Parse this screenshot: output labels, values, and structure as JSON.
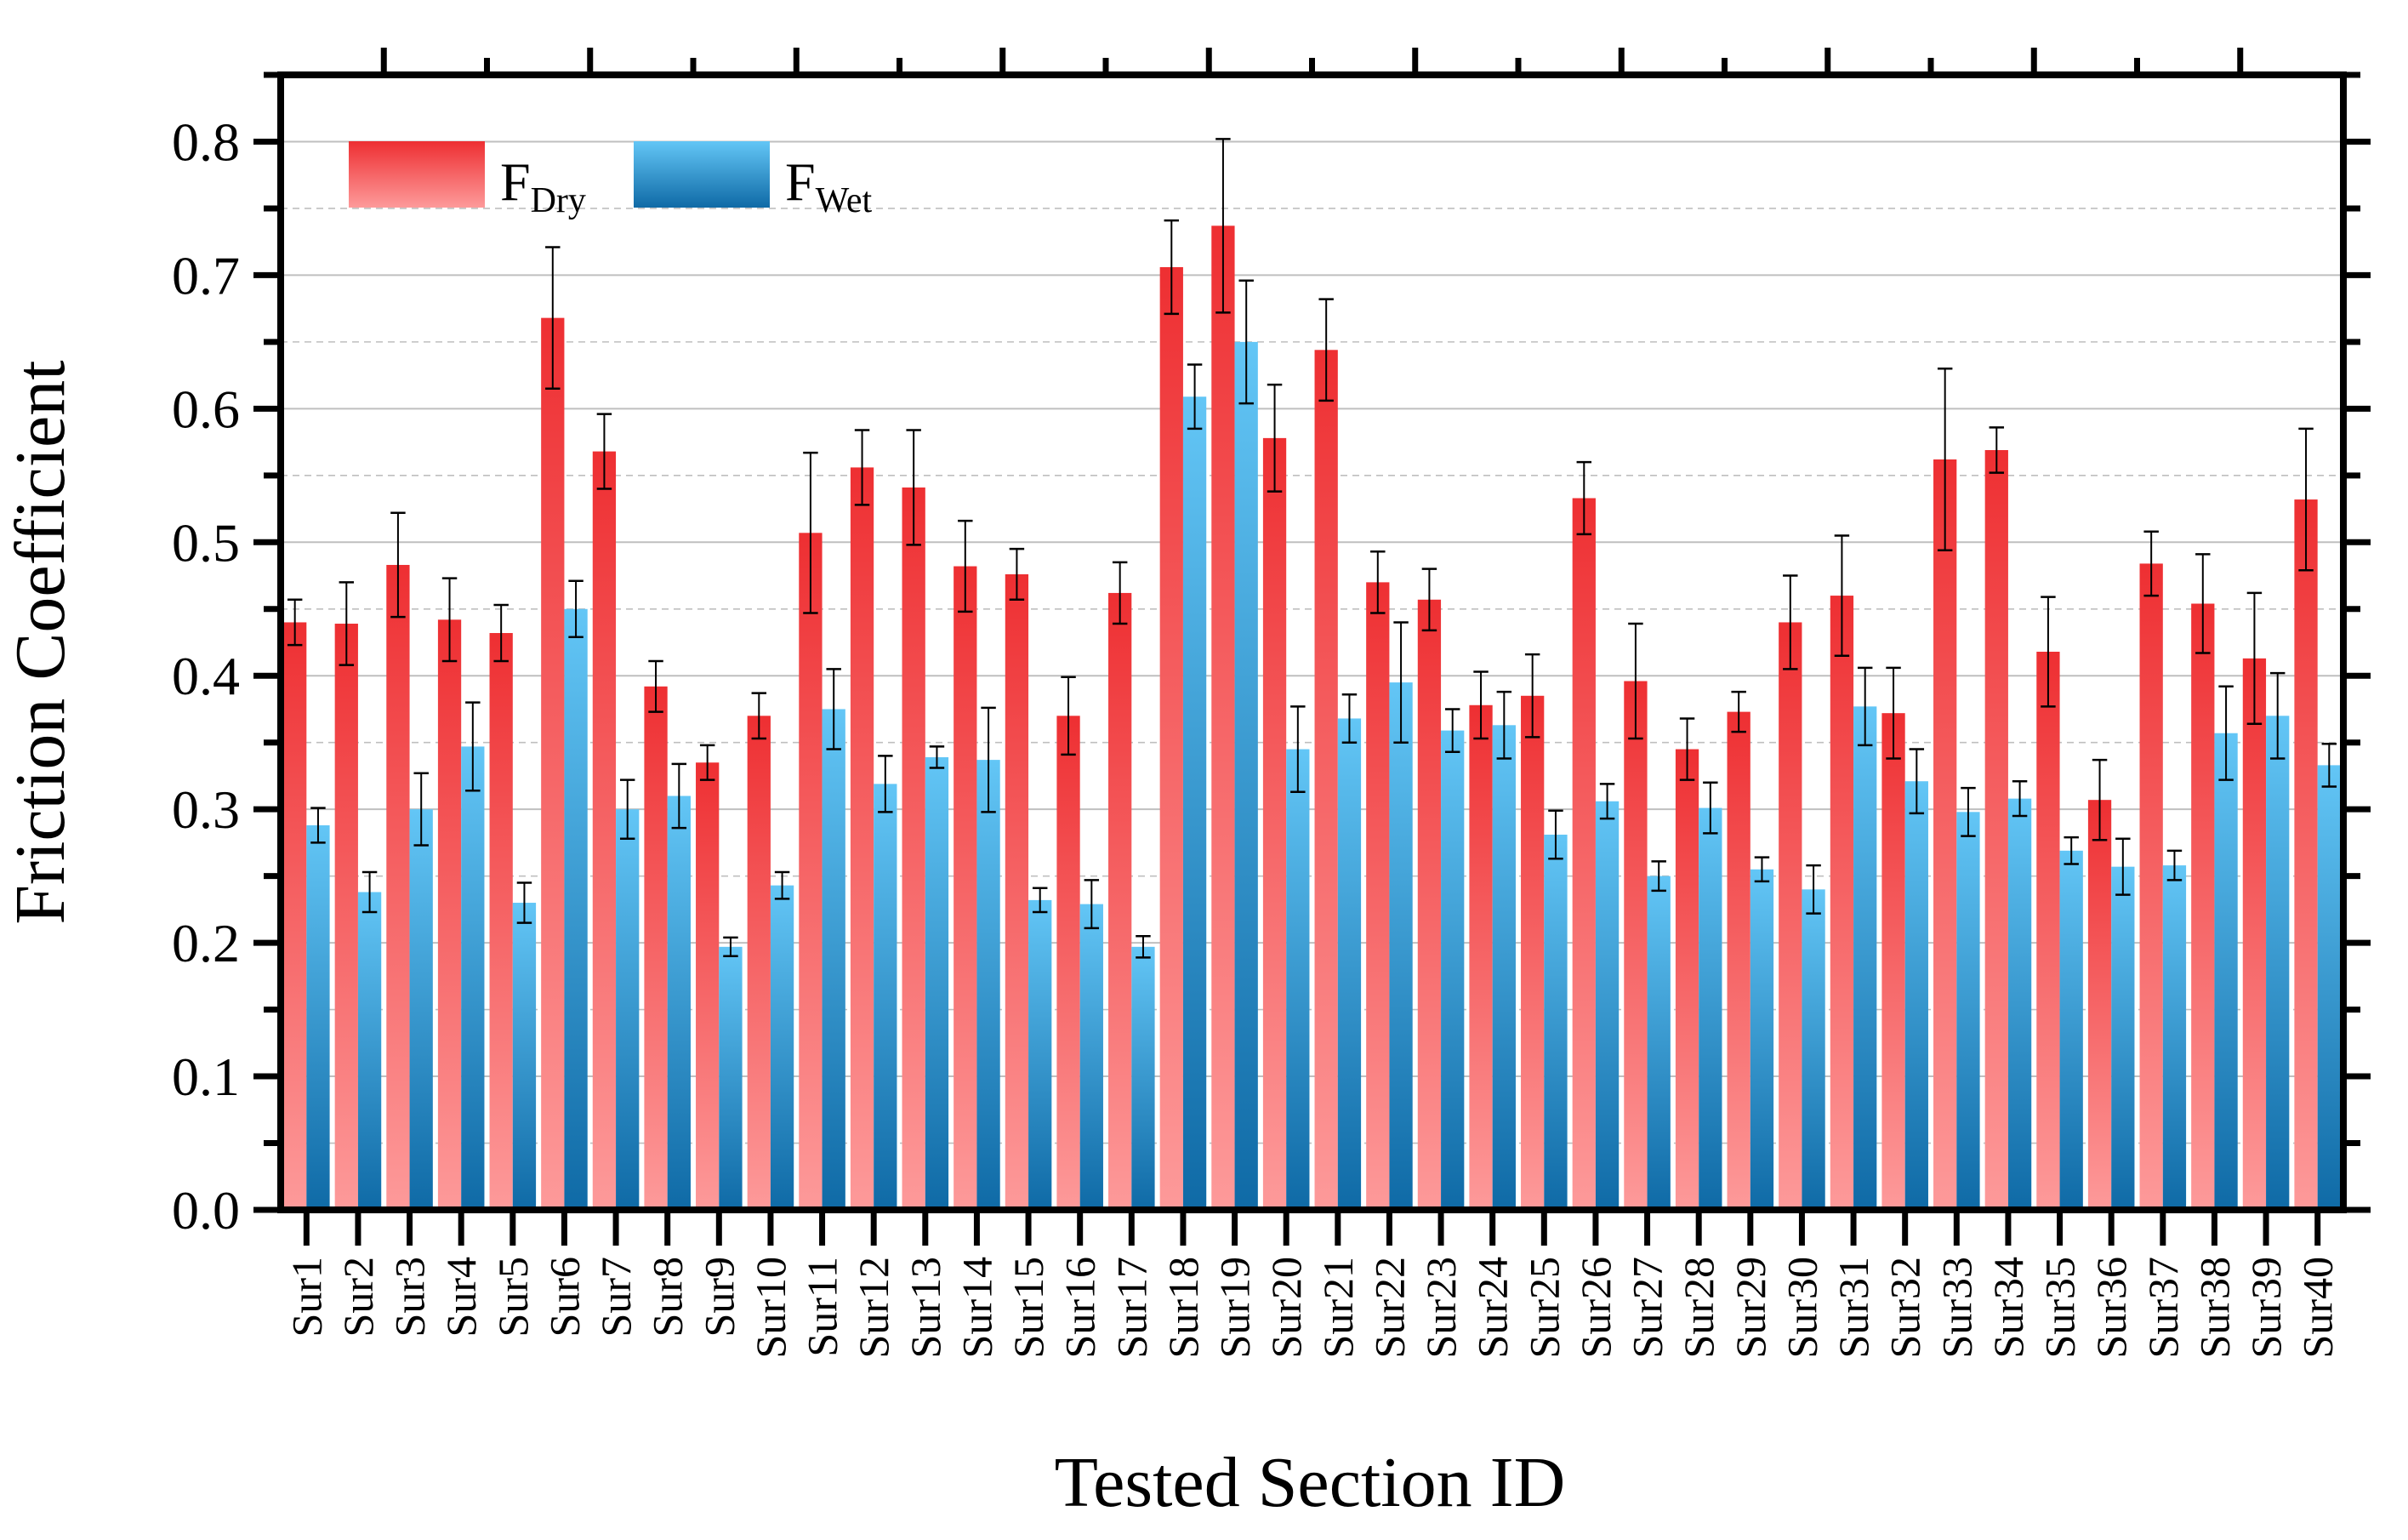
{
  "colors": {
    "dry_top": "#ee2f32",
    "dry_bottom": "#fd9a9a",
    "wet_top": "#63c6f6",
    "wet_bottom": "#0f6aa6",
    "grid": "#bfbfbf"
  },
  "chart_data": {
    "type": "bar",
    "xlabel": "Tested Section ID",
    "ylabel": "Friction Coefficient",
    "ylim": [
      0,
      0.85
    ],
    "yticks": [
      "0.0",
      "0.1",
      "0.2",
      "0.3",
      "0.4",
      "0.5",
      "0.6",
      "0.7",
      "0.8"
    ],
    "grid": true,
    "legend_position": "top-left",
    "categories": [
      "Sur1",
      "Sur2",
      "Sur3",
      "Sur4",
      "Sur5",
      "Sur6",
      "Sur7",
      "Sur8",
      "Sur9",
      "Sur10",
      "Sur11",
      "Sur12",
      "Sur13",
      "Sur14",
      "Sur15",
      "Sur16",
      "Sur17",
      "Sur18",
      "Sur19",
      "Sur20",
      "Sur21",
      "Sur22",
      "Sur23",
      "Sur24",
      "Sur25",
      "Sur26",
      "Sur27",
      "Sur28",
      "Sur29",
      "Sur30",
      "Sur31",
      "Sur32",
      "Sur33",
      "Sur34",
      "Sur35",
      "Sur36",
      "Sur37",
      "Sur38",
      "Sur39",
      "Sur40"
    ],
    "series": [
      {
        "name": "F",
        "subscript": "Dry",
        "values": [
          0.44,
          0.439,
          0.483,
          0.442,
          0.432,
          0.668,
          0.568,
          0.392,
          0.335,
          0.37,
          0.507,
          0.556,
          0.541,
          0.482,
          0.476,
          0.37,
          0.462,
          0.706,
          0.737,
          0.578,
          0.644,
          0.47,
          0.457,
          0.378,
          0.385,
          0.533,
          0.396,
          0.345,
          0.373,
          0.44,
          0.46,
          0.372,
          0.562,
          0.569,
          0.418,
          0.307,
          0.484,
          0.454,
          0.413,
          0.532
        ],
        "errors": [
          0.017,
          0.031,
          0.039,
          0.031,
          0.021,
          0.053,
          0.028,
          0.019,
          0.013,
          0.017,
          0.06,
          0.028,
          0.043,
          0.034,
          0.019,
          0.029,
          0.023,
          0.035,
          0.065,
          0.04,
          0.038,
          0.023,
          0.023,
          0.025,
          0.031,
          0.027,
          0.043,
          0.023,
          0.015,
          0.035,
          0.045,
          0.034,
          0.068,
          0.017,
          0.041,
          0.03,
          0.024,
          0.037,
          0.049,
          0.053
        ]
      },
      {
        "name": "F",
        "subscript": "Wet",
        "values": [
          0.288,
          0.238,
          0.3,
          0.347,
          0.23,
          0.45,
          0.3,
          0.31,
          0.197,
          0.243,
          0.375,
          0.319,
          0.339,
          0.337,
          0.232,
          0.229,
          0.197,
          0.609,
          0.65,
          0.345,
          0.368,
          0.395,
          0.359,
          0.363,
          0.281,
          0.306,
          0.25,
          0.301,
          0.255,
          0.24,
          0.377,
          0.321,
          0.298,
          0.308,
          0.269,
          0.257,
          0.258,
          0.357,
          0.37,
          0.333
        ],
        "errors": [
          0.013,
          0.015,
          0.027,
          0.033,
          0.015,
          0.021,
          0.022,
          0.024,
          0.007,
          0.01,
          0.03,
          0.021,
          0.008,
          0.039,
          0.009,
          0.018,
          0.008,
          0.024,
          0.046,
          0.032,
          0.018,
          0.045,
          0.016,
          0.025,
          0.018,
          0.013,
          0.011,
          0.019,
          0.009,
          0.018,
          0.029,
          0.024,
          0.018,
          0.013,
          0.01,
          0.021,
          0.011,
          0.035,
          0.032,
          0.016
        ]
      }
    ]
  }
}
